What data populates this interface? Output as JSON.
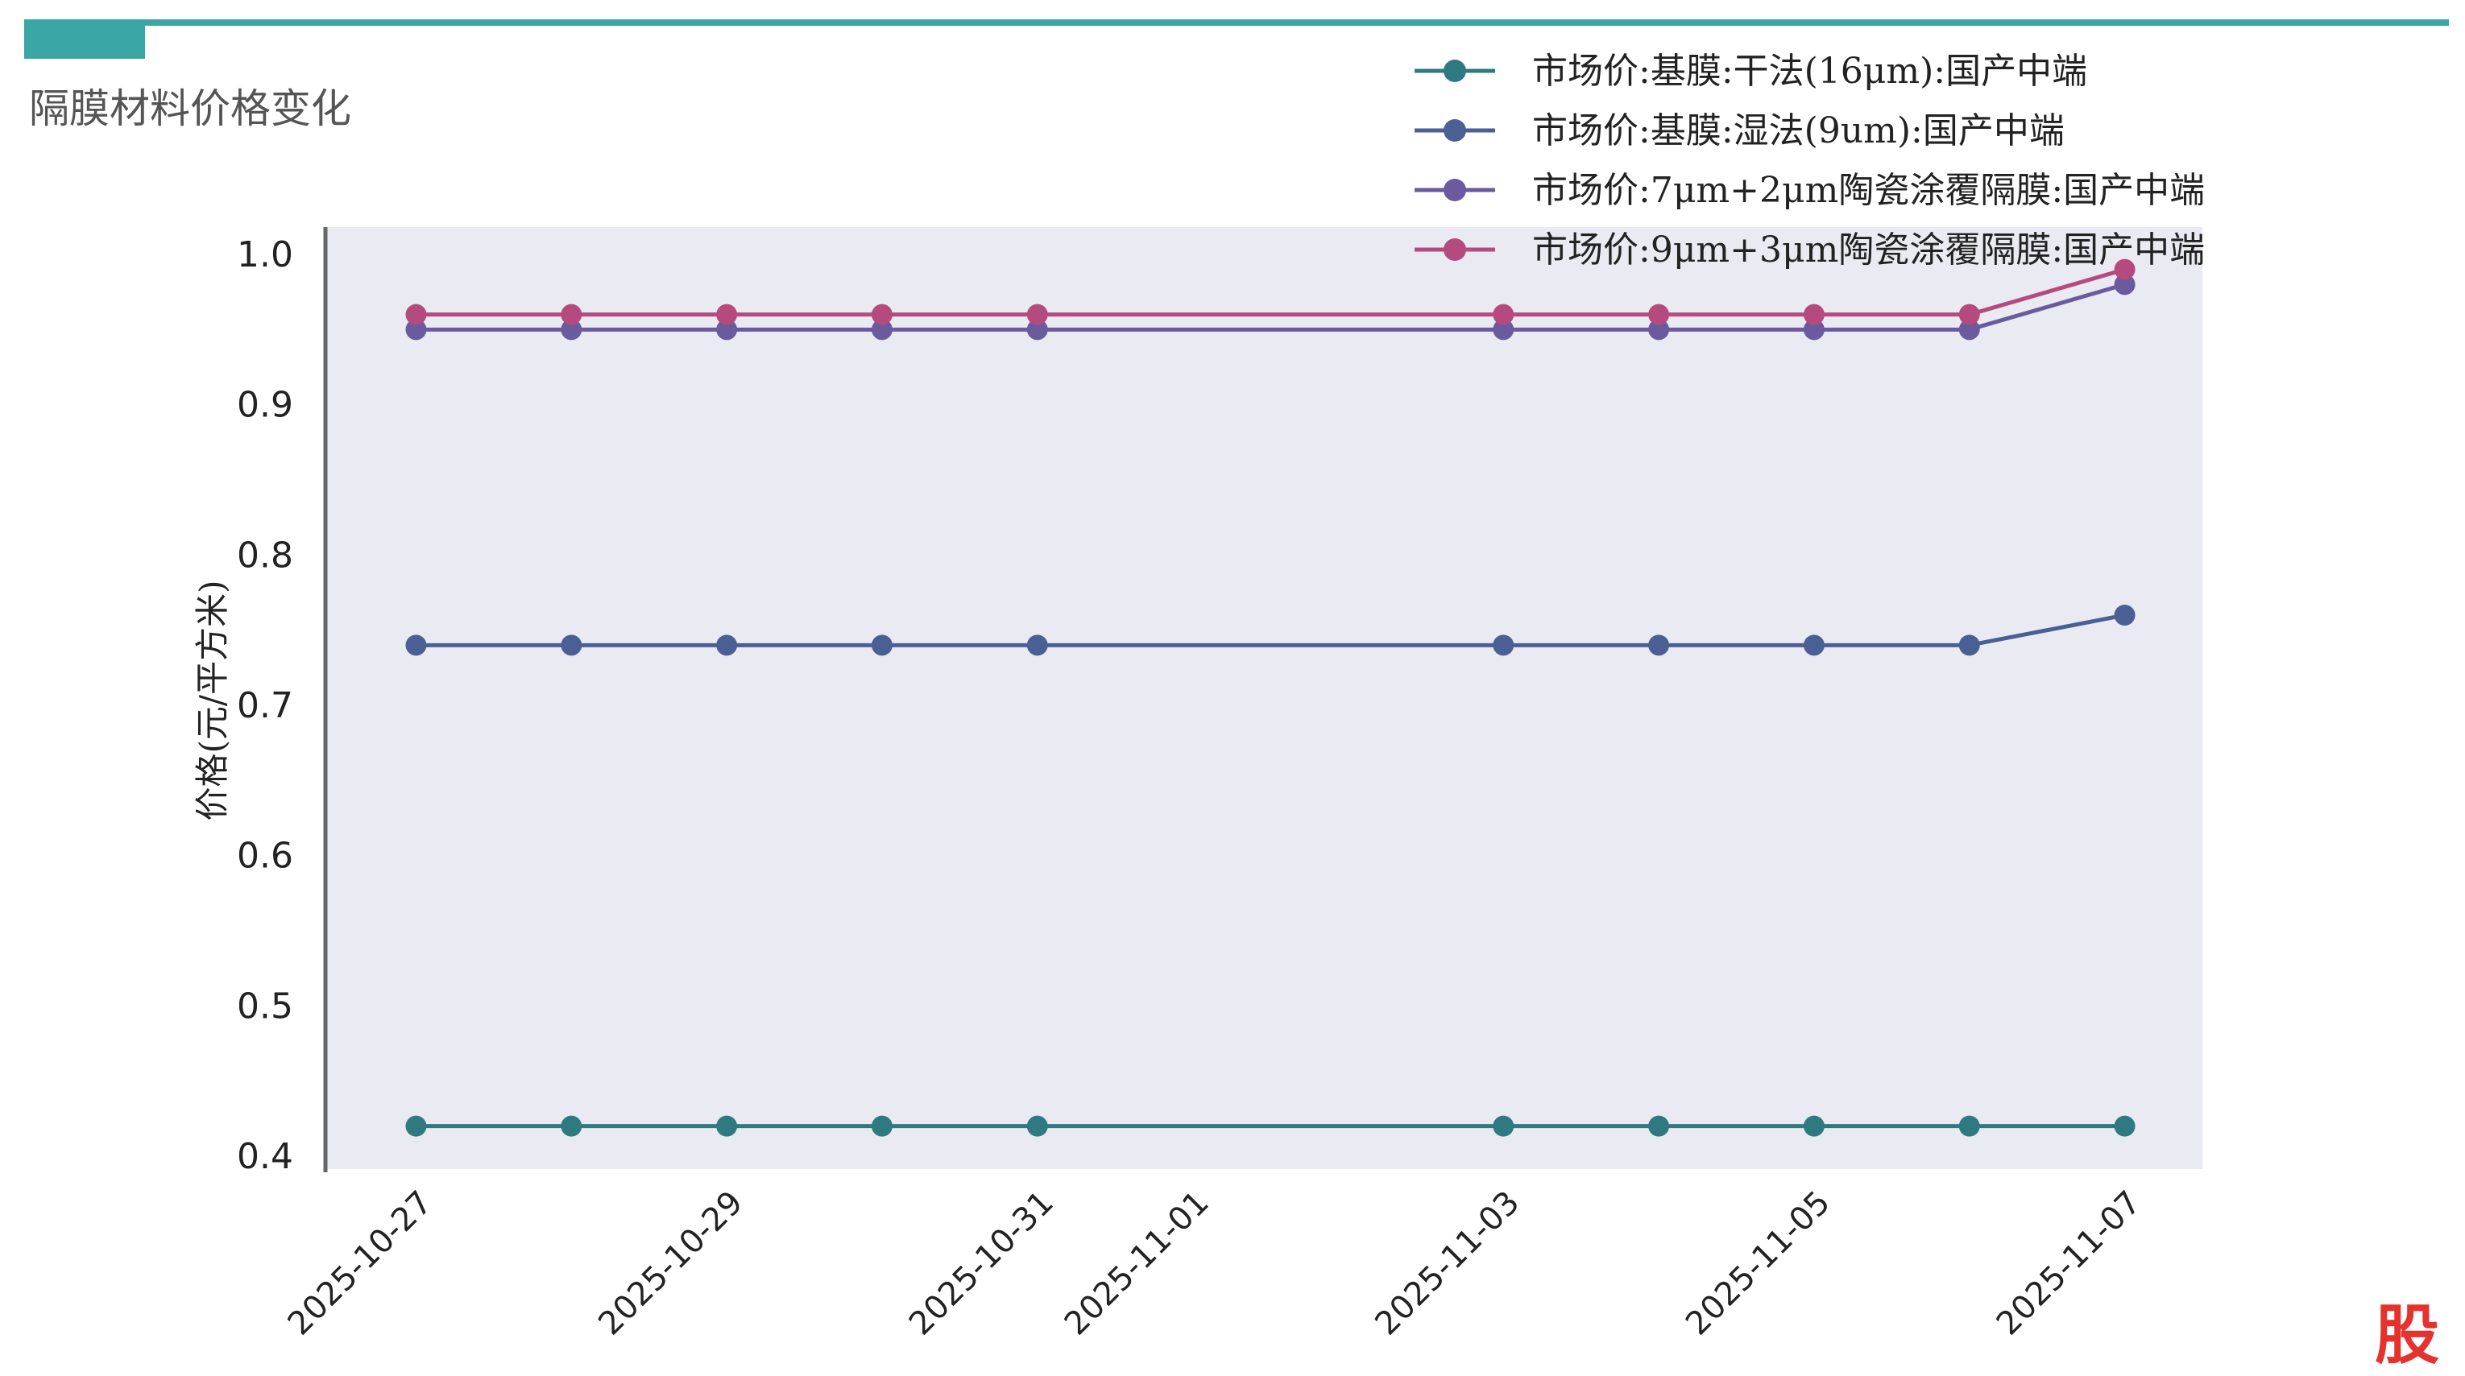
{
  "page": {
    "title": "隔膜材料价格变化",
    "accent_color": "#3aa6a6",
    "watermark": "股",
    "watermark_color": "#e5322d"
  },
  "chart_data": {
    "type": "line",
    "ylabel": "价格(元/平方米)",
    "xlabel": "",
    "ylim": [
      0.4,
      1.0
    ],
    "yticks": [
      0.4,
      0.5,
      0.6,
      0.7,
      0.8,
      0.9,
      1.0
    ],
    "ytick_labels": [
      "0.4",
      "0.5",
      "0.6",
      "0.7",
      "0.8",
      "0.9",
      "1.0"
    ],
    "x": [
      "2025-10-27",
      "2025-10-28",
      "2025-10-29",
      "2025-10-30",
      "2025-10-31",
      "2025-11-03",
      "2025-11-04",
      "2025-11-05",
      "2025-11-06",
      "2025-11-07"
    ],
    "xlim": [
      "2025-10-26 10:00",
      "2025-11-07 12:00"
    ],
    "xticks": [
      "2025-10-27",
      "2025-10-29",
      "2025-10-31",
      "2025-11-01",
      "2025-11-03",
      "2025-11-05",
      "2025-11-07"
    ],
    "xtick_labels": [
      "2025-10-27",
      "2025-10-29",
      "2025-10-31",
      "2025-11-01",
      "2025-11-03",
      "2025-11-05",
      "2025-11-07"
    ],
    "background": "#eaeaf2",
    "grid": false,
    "legend_position": "top-right",
    "series": [
      {
        "name": "市场价:基膜:干法(16μm):国产中端",
        "color": "#2f7a80",
        "values": [
          0.42,
          0.42,
          0.42,
          0.42,
          0.42,
          0.42,
          0.42,
          0.42,
          0.42,
          0.42
        ]
      },
      {
        "name": "市场价:基膜:湿法(9um):国产中端",
        "color": "#4a6094",
        "values": [
          0.74,
          0.74,
          0.74,
          0.74,
          0.74,
          0.74,
          0.74,
          0.74,
          0.74,
          0.76
        ]
      },
      {
        "name": "市场价:7μm+2μm陶瓷涂覆隔膜:国产中端",
        "color": "#6a5a9e",
        "values": [
          0.95,
          0.95,
          0.95,
          0.95,
          0.95,
          0.95,
          0.95,
          0.95,
          0.95,
          0.98
        ]
      },
      {
        "name": "市场价:9μm+3μm陶瓷涂覆隔膜:国产中端",
        "color": "#b44a7e",
        "values": [
          0.96,
          0.96,
          0.96,
          0.96,
          0.96,
          0.96,
          0.96,
          0.96,
          0.96,
          0.99
        ]
      }
    ]
  }
}
